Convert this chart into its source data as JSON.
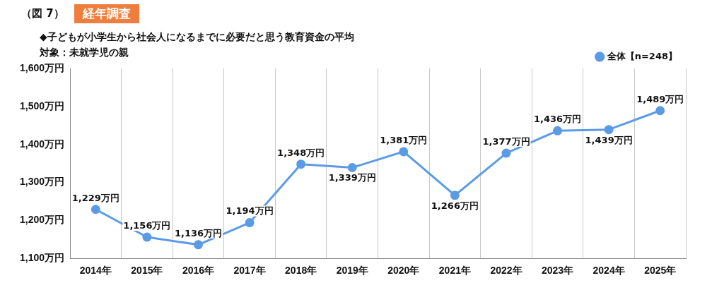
{
  "chart_data": {
    "type": "line",
    "title": "◆子どもが小学生から社会人になるまでに必要だと思う教育資金の平均",
    "subtitle": "対象：未就学児の親",
    "annotations": [
      "（図 7）",
      "経年調査"
    ],
    "categories": [
      "2014年",
      "2015年",
      "2016年",
      "2017年",
      "2018年",
      "2019年",
      "2020年",
      "2021年",
      "2022年",
      "2023年",
      "2024年",
      "2025年"
    ],
    "series": [
      {
        "name": "全体【n=248】",
        "color": "#5b9be6",
        "values": [
          1229,
          1156,
          1136,
          1194,
          1348,
          1339,
          1381,
          1266,
          1377,
          1436,
          1439,
          1489
        ],
        "value_labels": [
          "1,229万円",
          "1,156万円",
          "1,136万円",
          "1,194万円",
          "1,348万円",
          "1,339万円",
          "1,381万円",
          "1,266万円",
          "1,377万円",
          "1,436万円",
          "1,439万円",
          "1,489万円"
        ]
      }
    ],
    "ylim": [
      1100,
      1600
    ],
    "yticks": [
      {
        "value": 1100,
        "label": "1,100万円"
      },
      {
        "value": 1200,
        "label": "1,200万円"
      },
      {
        "value": 1300,
        "label": "1,300万円"
      },
      {
        "value": 1400,
        "label": "1,400万円"
      },
      {
        "value": 1500,
        "label": "1,500万円"
      },
      {
        "value": 1600,
        "label": "1,600万円"
      }
    ],
    "grid": "x",
    "legend": "top right",
    "marker": "circle",
    "line_style": "solid"
  }
}
